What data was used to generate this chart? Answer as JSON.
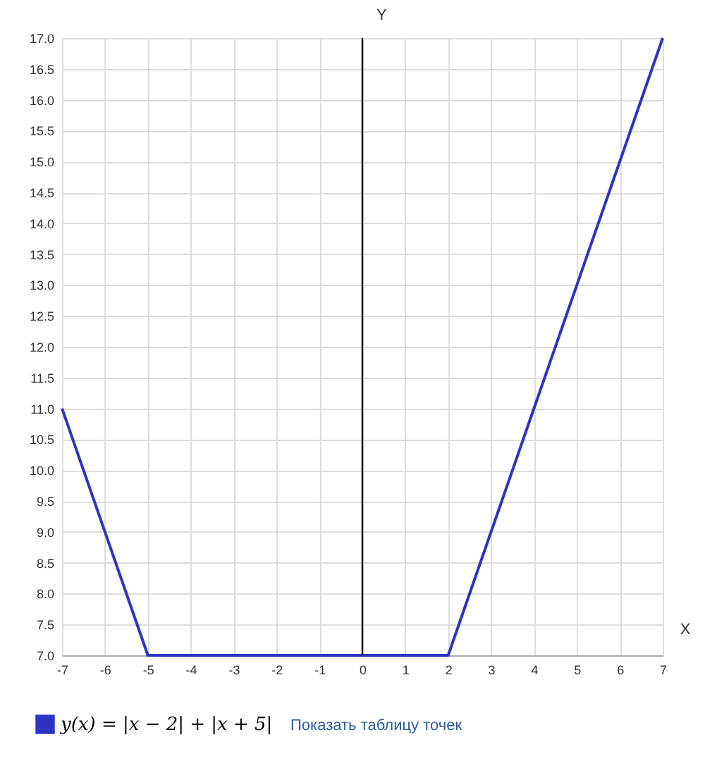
{
  "chart_data": {
    "type": "line",
    "xlabel": "X",
    "ylabel": "Y",
    "x": [
      -7,
      -5,
      2,
      7
    ],
    "series": [
      {
        "name": "y(x) = |x − 2| + |x + 5|",
        "color": "#2f33c4",
        "values": [
          11,
          7,
          7,
          17
        ]
      }
    ],
    "xlim": [
      -7,
      7
    ],
    "xticks": [
      -7,
      -6,
      -5,
      -4,
      -3,
      -2,
      -1,
      0,
      1,
      2,
      3,
      4,
      5,
      6,
      7
    ],
    "ylim": [
      7,
      17
    ],
    "yticks": [
      {
        "value": 7,
        "label": "7.0"
      },
      {
        "value": 7.5,
        "label": "7.5"
      },
      {
        "value": 8,
        "label": "8.0"
      },
      {
        "value": 8.5,
        "label": "8.5"
      },
      {
        "value": 9,
        "label": "9.0"
      },
      {
        "value": 9.5,
        "label": "9.5"
      },
      {
        "value": 10,
        "label": "10.0"
      },
      {
        "value": 10.5,
        "label": "10.5"
      },
      {
        "value": 11,
        "label": "11.0"
      },
      {
        "value": 11.5,
        "label": "11.5"
      },
      {
        "value": 12,
        "label": "12.0"
      },
      {
        "value": 12.5,
        "label": "12.5"
      },
      {
        "value": 13,
        "label": "13.0"
      },
      {
        "value": 13.5,
        "label": "13.5"
      },
      {
        "value": 14,
        "label": "14.0"
      },
      {
        "value": 14.5,
        "label": "14.5"
      },
      {
        "value": 15,
        "label": "15.0"
      },
      {
        "value": 15.5,
        "label": "15.5"
      },
      {
        "value": 16,
        "label": "16.0"
      },
      {
        "value": 16.5,
        "label": "16.5"
      },
      {
        "value": 17,
        "label": "17.0"
      }
    ],
    "ref_lines": [
      {
        "axis": "x",
        "value": 0,
        "color": "#000000"
      }
    ],
    "grid": true,
    "legend": "bottom",
    "annotations": [
      "Показать таблицу точек"
    ]
  }
}
